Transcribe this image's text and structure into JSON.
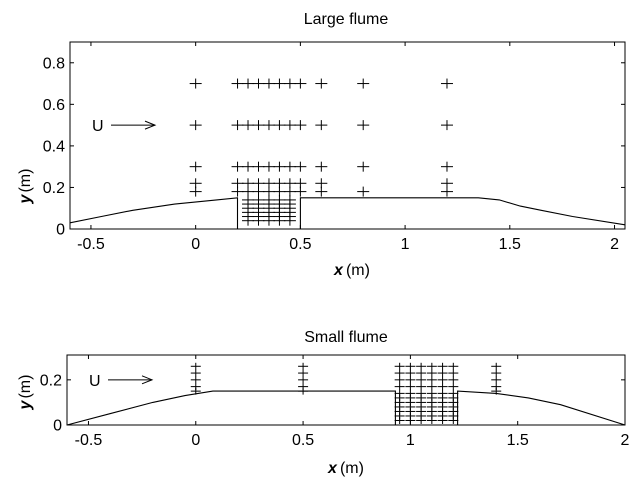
{
  "chart_data": [
    {
      "type": "scatter",
      "title": "Large flume",
      "xlabel_var": "x",
      "xlabel_unit": "(m)",
      "ylabel_var": "y",
      "ylabel_unit": "(m)",
      "xlim": [
        -0.6,
        2.05
      ],
      "ylim": [
        0,
        0.9
      ],
      "xticks": [
        -0.5,
        0,
        0.5,
        1,
        1.5,
        2
      ],
      "xtick_labels": [
        "-0.5",
        "0",
        "0.5",
        "1",
        "1.5",
        "2"
      ],
      "yticks": [
        0,
        0.2,
        0.4,
        0.6,
        0.8
      ],
      "ytick_labels": [
        "0",
        "0.2",
        "0.4",
        "0.6",
        "0.8"
      ],
      "flow_label": "U",
      "flow_arrow_y": 0.5,
      "bed_profile": [
        {
          "x": [
            -0.6,
            -0.45,
            -0.3,
            -0.1,
            0.1,
            0.2,
            0.2
          ],
          "y": [
            0.03,
            0.06,
            0.09,
            0.12,
            0.14,
            0.15,
            0
          ]
        },
        {
          "x": [
            0.5,
            0.5,
            1.35,
            1.45,
            1.55,
            1.65,
            1.8,
            2.05
          ],
          "y": [
            0,
            0.15,
            0.15,
            0.14,
            0.11,
            0.09,
            0.06,
            0.02
          ]
        }
      ],
      "measurement_points": [
        {
          "x": 0,
          "y": [
            0.7,
            0.5,
            0.3,
            0.22,
            0.18
          ]
        },
        {
          "x": 0.2,
          "y": [
            0.7,
            0.5,
            0.3,
            0.22,
            0.18
          ]
        },
        {
          "x": 0.25,
          "y": [
            0.7,
            0.5,
            0.3,
            0.22,
            0.18,
            0.14,
            0.12,
            0.1,
            0.08,
            0.06,
            0.04
          ]
        },
        {
          "x": 0.3,
          "y": [
            0.7,
            0.5,
            0.3,
            0.22,
            0.18,
            0.14,
            0.12,
            0.1,
            0.08,
            0.06,
            0.04
          ]
        },
        {
          "x": 0.35,
          "y": [
            0.7,
            0.5,
            0.3,
            0.22,
            0.18,
            0.14,
            0.12,
            0.1,
            0.08,
            0.06,
            0.04
          ]
        },
        {
          "x": 0.4,
          "y": [
            0.7,
            0.5,
            0.3,
            0.22,
            0.18,
            0.14,
            0.12,
            0.1,
            0.08,
            0.06,
            0.04
          ]
        },
        {
          "x": 0.45,
          "y": [
            0.7,
            0.5,
            0.3,
            0.22,
            0.18,
            0.14,
            0.12,
            0.1,
            0.08,
            0.06,
            0.04
          ]
        },
        {
          "x": 0.5,
          "y": [
            0.7,
            0.5,
            0.3,
            0.22,
            0.18
          ]
        },
        {
          "x": 0.6,
          "y": [
            0.7,
            0.5,
            0.3,
            0.22,
            0.18
          ]
        },
        {
          "x": 0.8,
          "y": [
            0.7,
            0.5,
            0.3,
            0.18
          ]
        },
        {
          "x": 1.2,
          "y": [
            0.7,
            0.5,
            0.3,
            0.22,
            0.18
          ]
        }
      ]
    },
    {
      "type": "scatter",
      "title": "Small flume",
      "xlabel_var": "x",
      "xlabel_unit": "(m)",
      "ylabel_var": "y",
      "ylabel_unit": "(m)",
      "xlim": [
        -0.6,
        2.0
      ],
      "ylim": [
        0,
        0.31
      ],
      "xticks": [
        -0.5,
        0,
        0.5,
        1,
        1.5,
        2
      ],
      "xtick_labels": [
        "-0.5",
        "0",
        "0.5",
        "1",
        "1.5",
        "2"
      ],
      "yticks": [
        0,
        0.2
      ],
      "ytick_labels": [
        "0",
        "0.2"
      ],
      "flow_label": "U",
      "flow_arrow_y": 0.2,
      "bed_profile": [
        {
          "x": [
            -0.6,
            -0.4,
            -0.2,
            -0.05,
            0.08,
            0.93,
            0.93
          ],
          "y": [
            0,
            0.05,
            0.1,
            0.13,
            0.15,
            0.15,
            0
          ]
        },
        {
          "x": [
            1.22,
            1.22,
            1.4,
            1.55,
            1.7,
            2.0
          ],
          "y": [
            0,
            0.15,
            0.14,
            0.12,
            0.09,
            0.0
          ]
        }
      ],
      "measurement_points": [
        {
          "x": 0,
          "y": [
            0.26,
            0.23,
            0.2,
            0.17,
            0.15
          ]
        },
        {
          "x": 0.5,
          "y": [
            0.26,
            0.23,
            0.2,
            0.17,
            0.15
          ]
        },
        {
          "x": 0.95,
          "y": [
            0.26,
            0.23,
            0.2,
            0.17,
            0.14,
            0.12,
            0.1,
            0.08,
            0.06,
            0.04,
            0.02
          ]
        },
        {
          "x": 1.0,
          "y": [
            0.26,
            0.23,
            0.2,
            0.17,
            0.14,
            0.12,
            0.1,
            0.08,
            0.06,
            0.04,
            0.02
          ]
        },
        {
          "x": 1.05,
          "y": [
            0.26,
            0.23,
            0.2,
            0.17,
            0.14,
            0.12,
            0.1,
            0.08,
            0.06,
            0.04,
            0.02
          ]
        },
        {
          "x": 1.1,
          "y": [
            0.26,
            0.23,
            0.2,
            0.17,
            0.14,
            0.12,
            0.1,
            0.08,
            0.06,
            0.04,
            0.02
          ]
        },
        {
          "x": 1.15,
          "y": [
            0.26,
            0.23,
            0.2,
            0.17,
            0.14,
            0.12,
            0.1,
            0.08,
            0.06,
            0.04,
            0.02
          ]
        },
        {
          "x": 1.2,
          "y": [
            0.26,
            0.23,
            0.2,
            0.17,
            0.14,
            0.12,
            0.1,
            0.08,
            0.06,
            0.04,
            0.02
          ]
        },
        {
          "x": 1.4,
          "y": [
            0.26,
            0.23,
            0.2,
            0.17,
            0.15
          ]
        }
      ]
    }
  ]
}
